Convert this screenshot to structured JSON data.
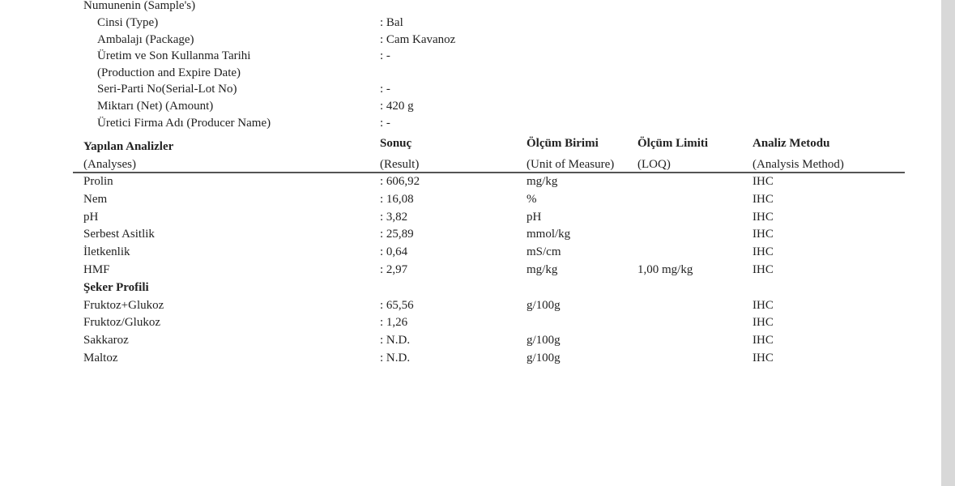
{
  "sample": {
    "heading": "Numunenin (Sample's)",
    "fields": [
      {
        "label": "Cinsi (Type)",
        "value": ": Bal"
      },
      {
        "label": "Ambalajı (Package)",
        "value": ": Cam Kavanoz"
      },
      {
        "label": "Üretim ve Son Kullanma Tarihi",
        "value": ": -"
      },
      {
        "label": "(Production and Expire Date)",
        "value": ""
      },
      {
        "label": "Seri-Parti No(Serial-Lot No)",
        "value": ": -"
      },
      {
        "label": "Miktarı (Net) (Amount)",
        "value": ": 420 g"
      },
      {
        "label": "Üretici Firma Adı (Producer Name)",
        "value": ": -"
      }
    ]
  },
  "table": {
    "headers": [
      {
        "title": "Yapılan Analizler",
        "subtitle": "(Analyses)"
      },
      {
        "title": "Sonuç",
        "subtitle": "(Result)"
      },
      {
        "title": "Ölçüm Birimi",
        "subtitle": "(Unit of Measure)"
      },
      {
        "title": "Ölçüm Limiti",
        "subtitle": "(LOQ)"
      },
      {
        "title": "Analiz Metodu",
        "subtitle": "(Analysis Method)"
      }
    ],
    "rows": [
      {
        "analysis": "Prolin",
        "result": ": 606,92",
        "unit": "mg/kg",
        "loq": "",
        "method": "IHC"
      },
      {
        "analysis": "Nem",
        "result": ": 16,08",
        "unit": "%",
        "loq": "",
        "method": "IHC"
      },
      {
        "analysis": "pH",
        "result": ": 3,82",
        "unit": "pH",
        "loq": "",
        "method": "IHC"
      },
      {
        "analysis": "Serbest Asitlik",
        "result": ": 25,89",
        "unit": "mmol/kg",
        "loq": "",
        "method": "IHC"
      },
      {
        "analysis": "İletkenlik",
        "result": ": 0,64",
        "unit": "mS/cm",
        "loq": "",
        "method": "IHC"
      },
      {
        "analysis": "HMF",
        "result": ": 2,97",
        "unit": "mg/kg",
        "loq": "1,00 mg/kg",
        "method": "IHC"
      },
      {
        "section": "Şeker Profili"
      },
      {
        "analysis": "Fruktoz+Glukoz",
        "result": ": 65,56",
        "unit": "g/100g",
        "loq": "",
        "method": "IHC"
      },
      {
        "analysis": "Fruktoz/Glukoz",
        "result": ": 1,26",
        "unit": "",
        "loq": "",
        "method": "IHC"
      },
      {
        "analysis": "Sakkaroz",
        "result": ": N.D.",
        "unit": "g/100g",
        "loq": "",
        "method": "IHC"
      },
      {
        "analysis": "Maltoz",
        "result": ": N.D.",
        "unit": "g/100g",
        "loq": "",
        "method": "IHC"
      }
    ]
  }
}
